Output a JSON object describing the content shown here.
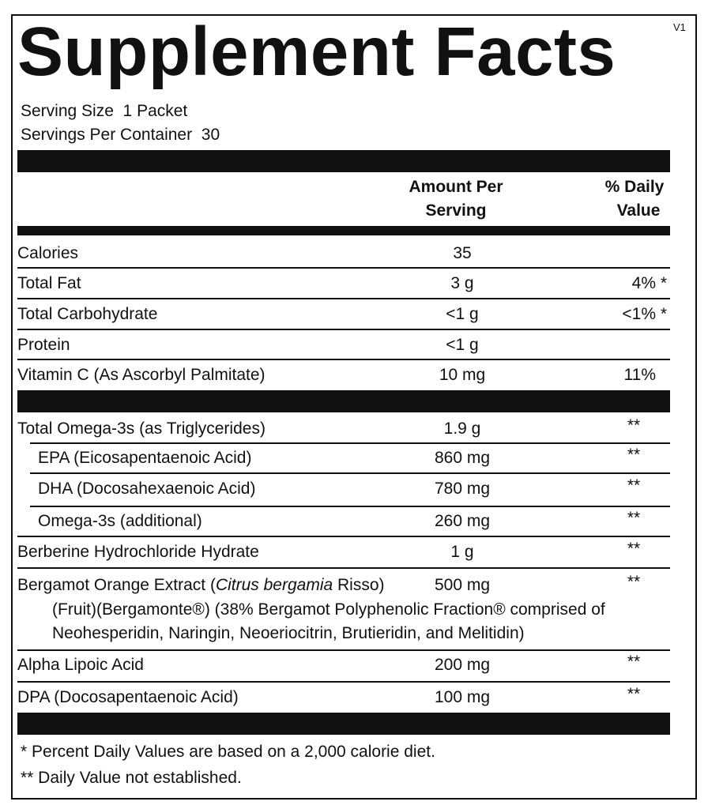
{
  "header": {
    "title": "Supplement Facts",
    "version": "V1",
    "serving_size": "Serving Size  1 Packet",
    "servings_per_container": "Servings Per Container  30"
  },
  "columns": {
    "amount": [
      "Amount Per",
      "Serving"
    ],
    "daily_value": [
      "% Daily",
      "Value"
    ]
  },
  "rows": [
    {
      "name": "Calories",
      "amount": "35"
    },
    {
      "name": "Total Fat",
      "amount": "3 g",
      "dv": "4% *"
    },
    {
      "name": "Total Carbohydrate",
      "amount": "<1 g",
      "dv": "<1% *"
    },
    {
      "name": "Protein",
      "amount": "<1 g"
    },
    {
      "name": "Vitamin C (As Ascorbyl Palmitate)",
      "amount": "10 mg",
      "dv": "11%"
    }
  ],
  "rows2": [
    {
      "name": "Total Omega-3s (as Triglycerides)",
      "amount": "1.9 g",
      "dv": "**"
    },
    {
      "name": "EPA (Eicosapentaenoic Acid)",
      "amount": "860 mg",
      "dv": "**"
    },
    {
      "name": "DHA (Docosahexaenoic Acid)",
      "amount": "780 mg",
      "dv": "**"
    },
    {
      "name": "Omega-3s (additional)",
      "amount": "260 mg",
      "dv": "**"
    },
    {
      "name": "Berberine Hydrochloride Hydrate",
      "amount": "1 g",
      "dv": "**"
    },
    {
      "name": [
        "Bergamot Orange Extract (",
        "Citrus bergamia",
        " Risso)"
      ],
      "amount": "500 mg",
      "dv": "**",
      "details": [
        "(Fruit)(Bergamonte®) (38% Bergamot Polyphenolic Fraction® comprised of",
        "Neohesperidin, Naringin, Neoeriocitrin, Brutieridin, and Melitidin)"
      ]
    },
    {
      "name": "Alpha Lipoic Acid",
      "amount": "200 mg",
      "dv": "**"
    },
    {
      "name": "DPA (Docosapentaenoic Acid)",
      "amount": "100 mg",
      "dv": "**"
    }
  ],
  "footnotes": [
    "* Percent Daily Values are based on a 2,000 calorie diet.",
    "** Daily Value not established."
  ]
}
